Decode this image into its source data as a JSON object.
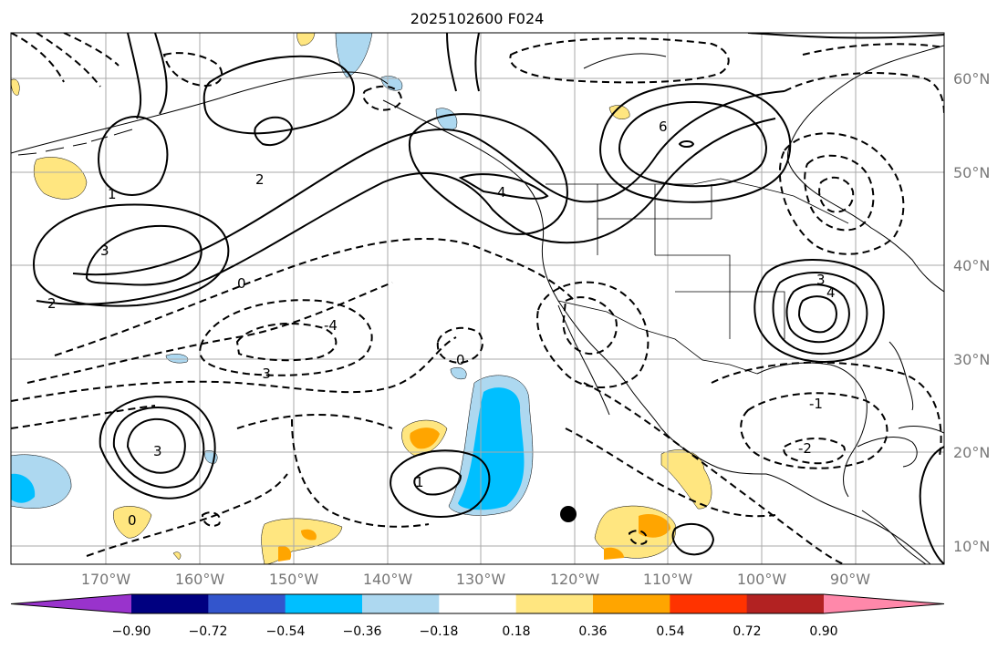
{
  "title": "2025102600 F024",
  "lat_labels": [
    "60°N",
    "50°N",
    "40°N",
    "30°N",
    "20°N",
    "10°N"
  ],
  "lon_labels": [
    "170°W",
    "160°W",
    "150°W",
    "140°W",
    "130°W",
    "120°W",
    "110°W",
    "100°W",
    "90°W"
  ],
  "colorbar": {
    "ticks": [
      "−0.90",
      "−0.72",
      "−0.54",
      "−0.36",
      "−0.18",
      "0.18",
      "0.36",
      "0.54",
      "0.72",
      "0.90"
    ],
    "colors": [
      "#9933cc",
      "#000080",
      "#3355cc",
      "#00bfff",
      "#add8f0",
      "#ffffff",
      "#ffe680",
      "#ffa500",
      "#ff3300",
      "#b22222",
      "#ff88aa"
    ],
    "extend": "both"
  },
  "contour_labels": {
    "m1_east": "-1",
    "m2_east": "-2",
    "m3_pacific": "-3",
    "m4_pacific": "-4",
    "p4_bc": "4",
    "p6_canada": "6",
    "p4_southeast": "4",
    "p3_southeast": "3",
    "p3_pacific": "3",
    "p2_pacific": "2",
    "p1_pacific": "1",
    "zero_a": "0",
    "zero_b": "0",
    "zero_c": "0",
    "p3_hawaii": "3",
    "p2_west": "2",
    "p1_west": "1"
  },
  "marker": {
    "label": "point-marker",
    "color": "#000000"
  },
  "colors": {
    "gridline": "#aaaaaa",
    "contour": "#000000",
    "coast": "#000000"
  }
}
